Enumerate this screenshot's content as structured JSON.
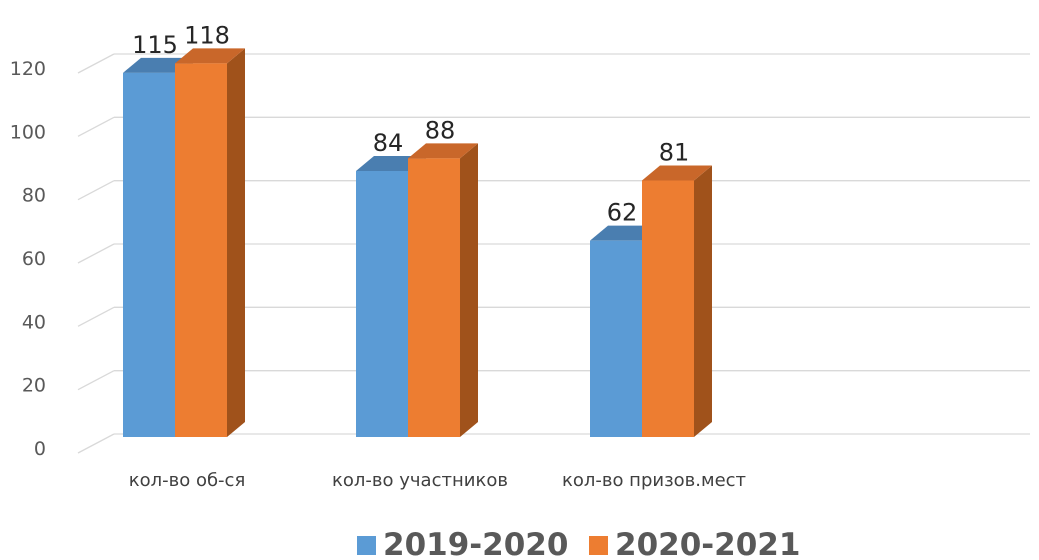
{
  "chart_data": {
    "type": "bar",
    "categories": [
      "кол-во об-ся",
      "кол-во участников",
      "кол-во призов.мест"
    ],
    "series": [
      {
        "name": "2019-2020",
        "values": [
          115,
          84,
          62
        ],
        "color": "#5B9BD5",
        "side_color": "#41719C",
        "top_color": "#4A7EB0"
      },
      {
        "name": "2020-2021",
        "values": [
          118,
          88,
          81
        ],
        "color": "#ED7D31",
        "side_color": "#A0521B",
        "top_color": "#C9672A"
      }
    ],
    "ylim": [
      0,
      120
    ],
    "yticks": [
      "0",
      "20",
      "40",
      "60",
      "80",
      "100",
      "120"
    ],
    "grid": true,
    "legend_position": "bottom",
    "data_labels": true,
    "style": "3d-clustered-column"
  }
}
